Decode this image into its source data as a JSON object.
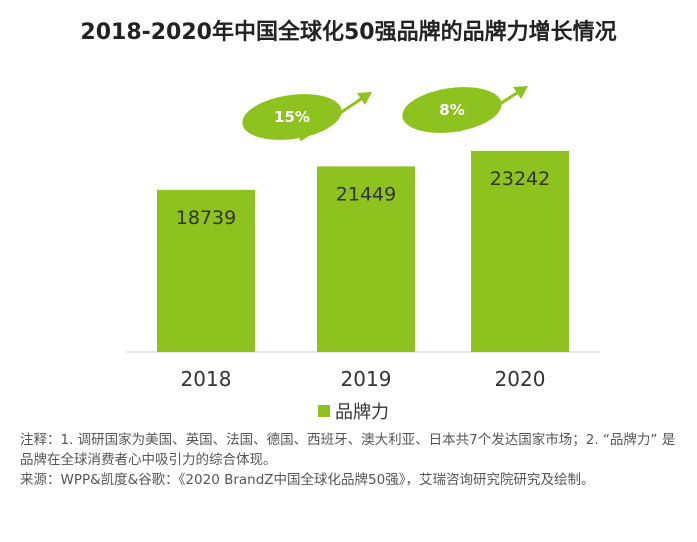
{
  "title": "2018-2020年中国全球化50强品牌的品牌力增长情况",
  "chart_data": {
    "type": "bar",
    "categories": [
      "2018",
      "2019",
      "2020"
    ],
    "series": [
      {
        "name": "品牌力",
        "values": [
          18739,
          21449,
          23242
        ]
      }
    ],
    "growth_labels": [
      {
        "from": "2018",
        "to": "2019",
        "label": "15%"
      },
      {
        "from": "2019",
        "to": "2020",
        "label": "8%"
      }
    ],
    "colors": {
      "bar": "#8DC21F"
    },
    "legend_position": "bottom",
    "grid": false
  },
  "legend_label": "品牌力",
  "notes": {
    "line1": "注释：1. 调研国家为美国、英国、法国、德国、西班牙、澳大利亚、日本共7个发达国家市场；2. “品牌力” 是品牌在全球消费者心中吸引力的综合体现。",
    "line2": "来源：WPP&凯度&谷歌：《2020 BrandZ中国全球化品牌50强》，艾瑞咨询研究院研究及绘制。"
  }
}
